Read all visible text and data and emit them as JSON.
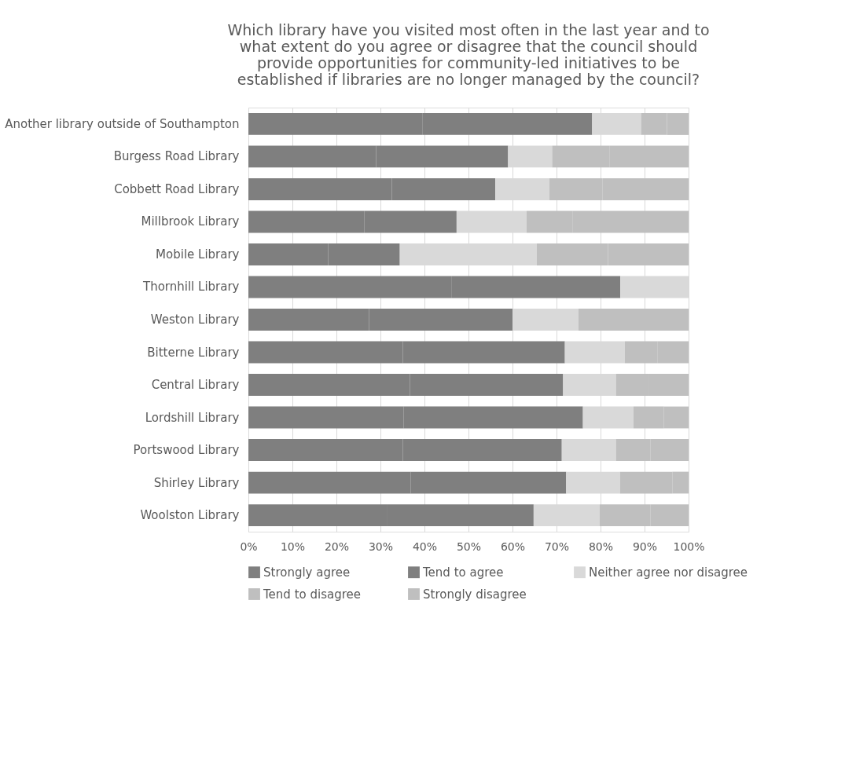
{
  "chart_data": {
    "type": "bar",
    "orientation": "horizontal",
    "stacked": true,
    "title": "Which library have you visited most often in the last year and to\nwhat extent do you agree or disagree that the council should\nprovide opportunities for community-led initiatives to be\nestablished if libraries are no longer managed by the council?",
    "categories": [
      "Another library outside of Southampton",
      "Burgess Road Library",
      "Cobbett Road Library",
      "Millbrook Library",
      "Mobile Library",
      "Thornhill Library",
      "Weston Library",
      "Bitterne Library",
      "Central Library",
      "Lordshill Library",
      "Portswood Library",
      "Shirley Library",
      "Woolston Library"
    ],
    "series": [
      {
        "name": "Strongly agree",
        "color": "#7f7f7f",
        "values": [
          39.5,
          29.0,
          32.6,
          26.3,
          18.1,
          46.1,
          27.4,
          35.1,
          36.7,
          35.3,
          35.1,
          36.9,
          31.6
        ]
      },
      {
        "name": "Tend to agree",
        "color": "#7f7f7f",
        "values": [
          38.6,
          30.0,
          23.5,
          21.0,
          16.3,
          38.4,
          32.6,
          36.8,
          34.8,
          40.7,
          36.1,
          35.3,
          33.2
        ]
      },
      {
        "name": "Neither agree nor disagree",
        "color": "#d9d9d9",
        "values": [
          11.1,
          10.0,
          12.3,
          15.9,
          31.1,
          15.5,
          15.0,
          13.6,
          12.0,
          11.5,
          12.3,
          12.2,
          15.0
        ]
      },
      {
        "name": "Tend to disagree",
        "color": "#bfbfbf",
        "values": [
          5.9,
          13.0,
          12.0,
          10.4,
          16.2,
          0,
          12.5,
          7.5,
          7.4,
          6.9,
          7.8,
          11.9,
          11.5
        ]
      },
      {
        "name": "Strongly disagree",
        "color": "#bfbfbf",
        "values": [
          4.9,
          18.0,
          19.6,
          26.4,
          18.3,
          0,
          12.5,
          7.0,
          9.1,
          5.6,
          8.7,
          3.7,
          8.7
        ]
      }
    ],
    "xlim": [
      0,
      100
    ],
    "xticks": [
      {
        "value": 0,
        "label": "0%"
      },
      {
        "value": 10,
        "label": "10%"
      },
      {
        "value": 20,
        "label": "20%"
      },
      {
        "value": 30,
        "label": "30%"
      },
      {
        "value": 40,
        "label": "40%"
      },
      {
        "value": 50,
        "label": "50%"
      },
      {
        "value": 60,
        "label": "60%"
      },
      {
        "value": 70,
        "label": "70%"
      },
      {
        "value": 80,
        "label": "80%"
      },
      {
        "value": 90,
        "label": "90%"
      },
      {
        "value": 100,
        "label": "100%"
      }
    ],
    "grid": "x",
    "legend": "bottom"
  }
}
